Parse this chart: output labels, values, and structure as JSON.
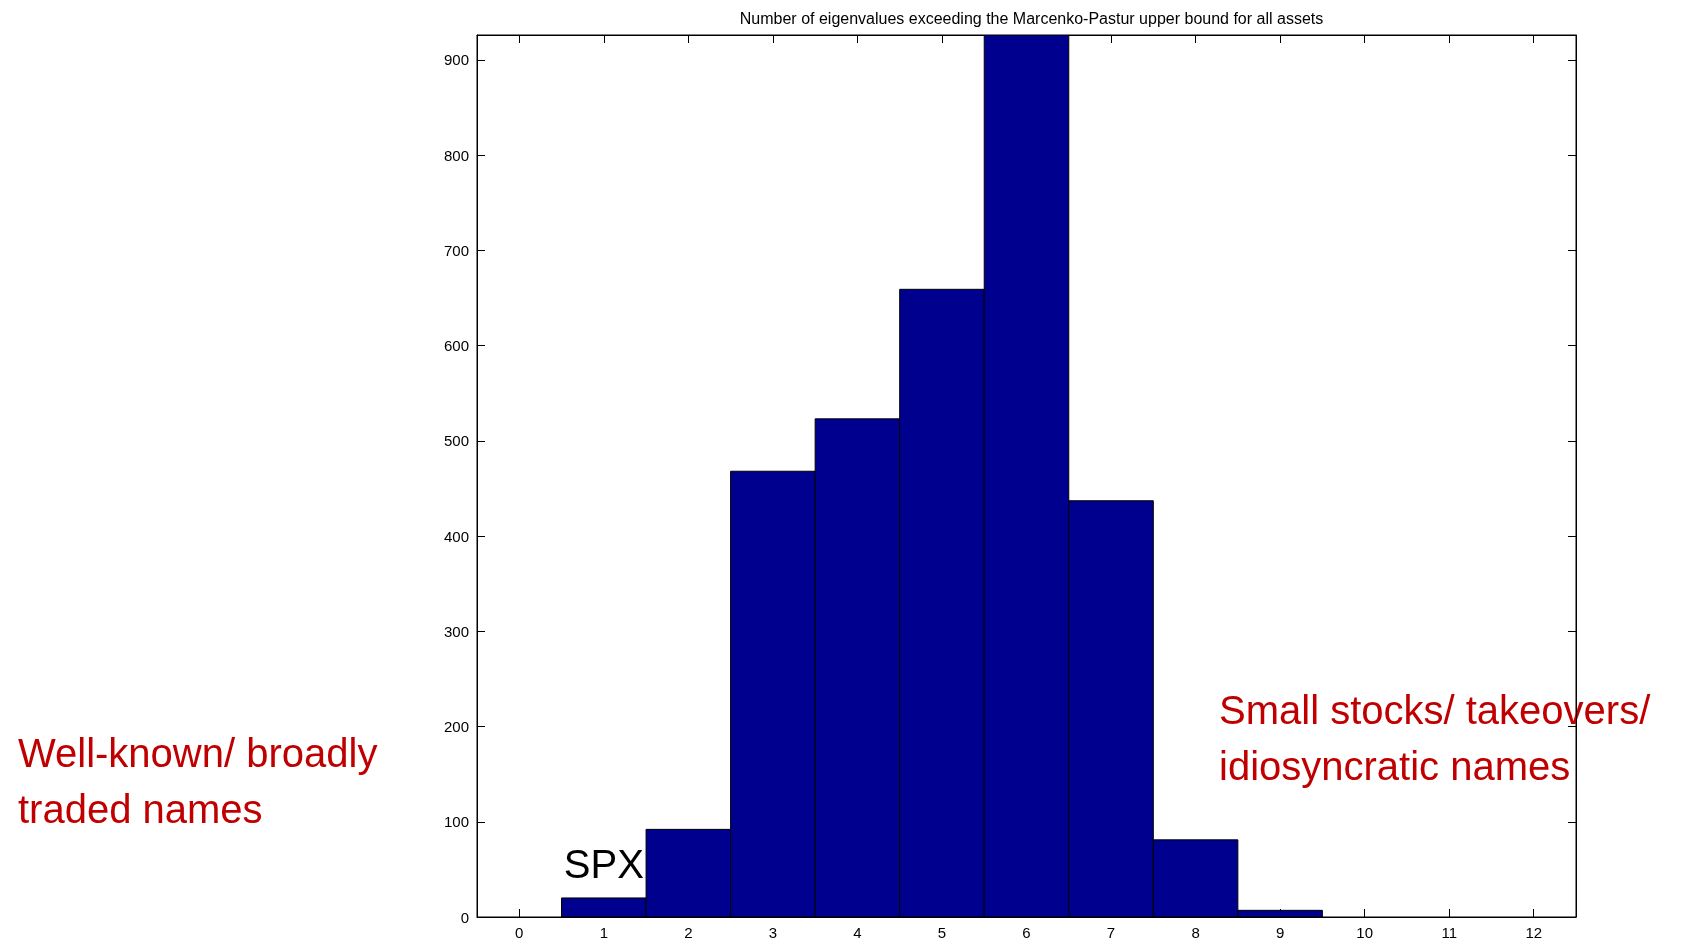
{
  "chart_data": {
    "type": "histogram",
    "title": "Number of eigenvalues exceeding the Marcenko-Pastur upper bound for all assets",
    "bins": [
      0.5,
      1.5,
      2.5,
      3.5,
      4.5,
      5.5,
      6.5,
      7.5,
      8.5,
      9.5
    ],
    "values": [
      20,
      92,
      468,
      523,
      659,
      926,
      437,
      81,
      7
    ],
    "color": "#00008f",
    "xlim": [
      -0.5,
      12.5
    ],
    "xticks": [
      0,
      1,
      2,
      3,
      4,
      5,
      6,
      7,
      8,
      9,
      10,
      11,
      12
    ],
    "ylim": [
      0,
      926
    ],
    "yticks": [
      0,
      100,
      200,
      300,
      400,
      500,
      600,
      700,
      800,
      900
    ],
    "grid": false,
    "annotations": [
      {
        "text": "SPX",
        "x": 1,
        "y": 20
      },
      "Well-known/ broadly traded names",
      "Small stocks/ takeovers/ idiosyncratic names"
    ]
  }
}
